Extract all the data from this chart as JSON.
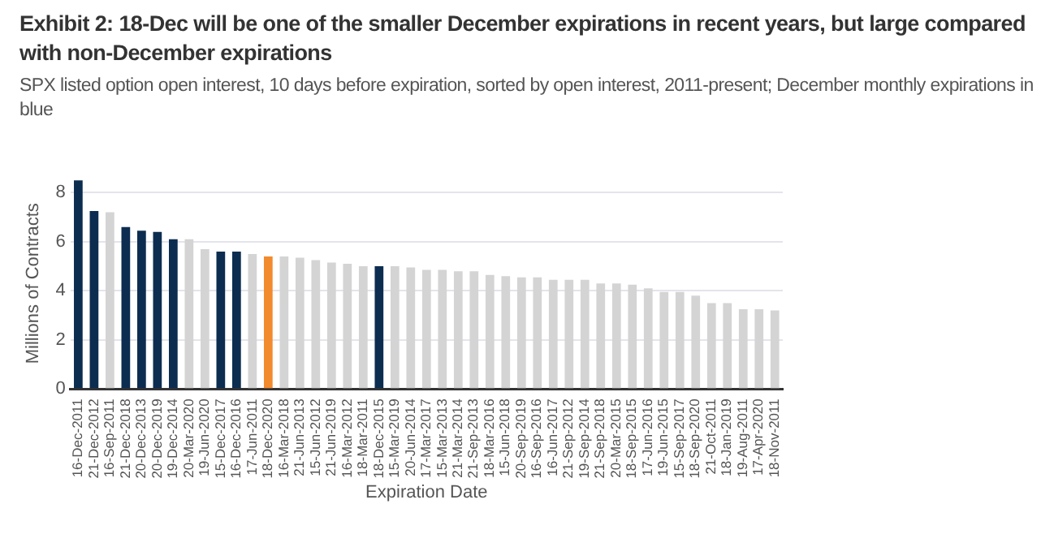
{
  "chart_data": {
    "type": "bar",
    "title": "Exhibit 2: 18-Dec will be one of the smaller December expirations in recent years, but large compared with non-December expirations",
    "subtitle": "SPX listed option open interest, 10 days before expiration, sorted by open interest, 2011-present; December monthly expirations in blue",
    "xlabel": "Expiration Date",
    "ylabel": "Millions of Contracts",
    "categories": [
      "16-Dec-2011",
      "21-Dec-2012",
      "16-Sep-2011",
      "21-Dec-2018",
      "20-Dec-2013",
      "20-Dec-2019",
      "19-Dec-2014",
      "20-Mar-2020",
      "19-Jun-2020",
      "15-Dec-2017",
      "16-Dec-2016",
      "17-Jun-2011",
      "18-Dec-2020",
      "16-Mar-2018",
      "21-Jun-2013",
      "15-Jun-2012",
      "21-Jun-2019",
      "16-Mar-2012",
      "18-Mar-2011",
      "18-Dec-2015",
      "15-Mar-2019",
      "20-Jun-2014",
      "17-Mar-2017",
      "15-Mar-2013",
      "21-Mar-2014",
      "21-Sep-2013",
      "18-Mar-2016",
      "15-Jun-2018",
      "20-Sep-2019",
      "16-Sep-2016",
      "16-Jun-2017",
      "21-Sep-2012",
      "19-Sep-2014",
      "21-Sep-2018",
      "20-Mar-2015",
      "18-Sep-2015",
      "17-Jun-2016",
      "19-Jun-2015",
      "15-Sep-2017",
      "18-Sep-2020",
      "21-Oct-2011",
      "18-Jan-2019",
      "19-Aug-2011",
      "17-Apr-2020",
      "18-Nov-2011"
    ],
    "values": [
      8.5,
      7.25,
      7.2,
      6.6,
      6.45,
      6.4,
      6.1,
      6.1,
      5.7,
      5.6,
      5.6,
      5.5,
      5.4,
      5.4,
      5.35,
      5.25,
      5.15,
      5.1,
      5.0,
      5.0,
      5.0,
      4.95,
      4.85,
      4.85,
      4.8,
      4.8,
      4.65,
      4.6,
      4.55,
      4.55,
      4.45,
      4.45,
      4.45,
      4.3,
      4.3,
      4.25,
      4.1,
      3.95,
      3.95,
      3.8,
      3.5,
      3.5,
      3.25,
      3.25,
      3.2
    ],
    "colors": [
      "#0c2d50",
      "#0c2d50",
      "#d4d4d4",
      "#0c2d50",
      "#0c2d50",
      "#0c2d50",
      "#0c2d50",
      "#d4d4d4",
      "#d4d4d4",
      "#0c2d50",
      "#0c2d50",
      "#d4d4d4",
      "#f28a2e",
      "#d4d4d4",
      "#d4d4d4",
      "#d4d4d4",
      "#d4d4d4",
      "#d4d4d4",
      "#d4d4d4",
      "#0c2d50",
      "#d4d4d4",
      "#d4d4d4",
      "#d4d4d4",
      "#d4d4d4",
      "#d4d4d4",
      "#d4d4d4",
      "#d4d4d4",
      "#d4d4d4",
      "#d4d4d4",
      "#d4d4d4",
      "#d4d4d4",
      "#d4d4d4",
      "#d4d4d4",
      "#d4d4d4",
      "#d4d4d4",
      "#d4d4d4",
      "#d4d4d4",
      "#d4d4d4",
      "#d4d4d4",
      "#d4d4d4",
      "#d4d4d4",
      "#d4d4d4",
      "#d4d4d4",
      "#d4d4d4",
      "#d4d4d4"
    ],
    "ylim": [
      0,
      8.6
    ],
    "yticks": [
      0,
      2,
      4,
      6,
      8
    ],
    "grid": "y",
    "legend": false
  }
}
